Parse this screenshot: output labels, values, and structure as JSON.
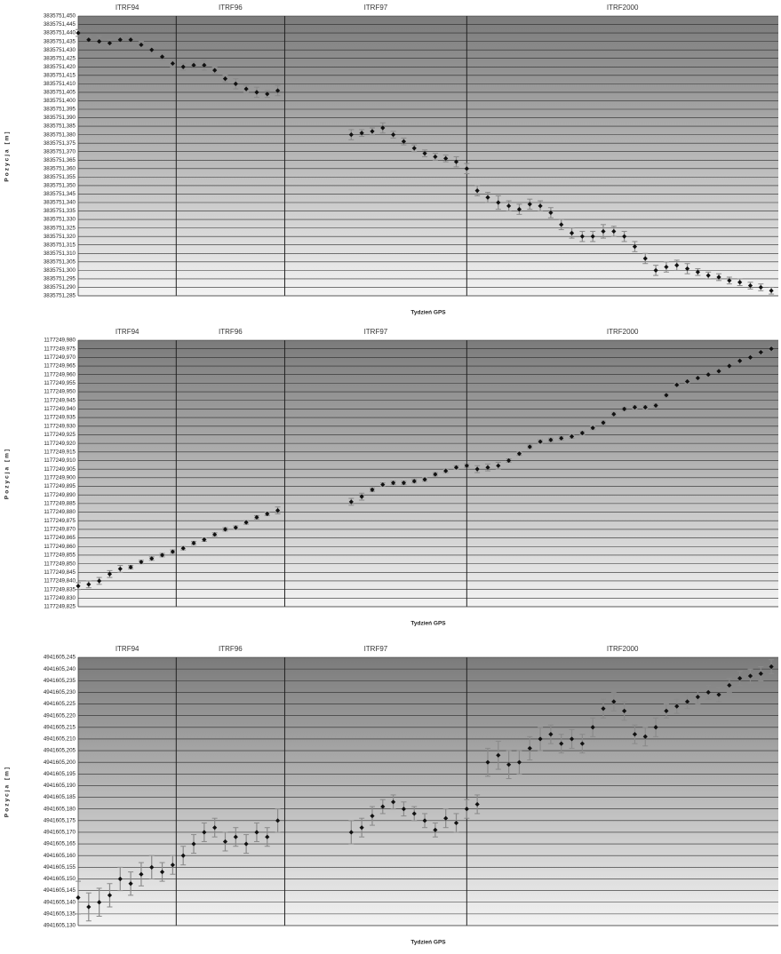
{
  "chart_data": [
    {
      "type": "scatter",
      "xlabel": "Tydzień GPS",
      "ylabel": "Pozycja [m]",
      "color": "#111111",
      "error_color": "#8a8a8a",
      "period_labels": [
        "ITRF94",
        "ITRF96",
        "ITRF97",
        "ITRF2000"
      ],
      "boundaries": [
        28,
        59,
        111
      ],
      "xlim": [
        0,
        200
      ],
      "ylim": [
        3835751.285,
        3835751.45
      ],
      "grid": true,
      "yticks": [
        {
          "value": 3835751.285,
          "label": "3835751,285"
        },
        {
          "value": 3835751.29,
          "label": "3835751,290"
        },
        {
          "value": 3835751.295,
          "label": "3835751,295"
        },
        {
          "value": 3835751.3,
          "label": "3835751,300"
        },
        {
          "value": 3835751.305,
          "label": "3835751,305"
        },
        {
          "value": 3835751.31,
          "label": "3835751,310"
        },
        {
          "value": 3835751.315,
          "label": "3835751,315"
        },
        {
          "value": 3835751.32,
          "label": "3835751,320"
        },
        {
          "value": 3835751.325,
          "label": "3835751,325"
        },
        {
          "value": 3835751.33,
          "label": "3835751,330"
        },
        {
          "value": 3835751.335,
          "label": "3835751,335"
        },
        {
          "value": 3835751.34,
          "label": "3835751,340"
        },
        {
          "value": 3835751.345,
          "label": "3835751,345"
        },
        {
          "value": 3835751.35,
          "label": "3835751,350"
        },
        {
          "value": 3835751.355,
          "label": "3835751,355"
        },
        {
          "value": 3835751.36,
          "label": "3835751,360"
        },
        {
          "value": 3835751.365,
          "label": "3835751,365"
        },
        {
          "value": 3835751.37,
          "label": "3835751,370"
        },
        {
          "value": 3835751.375,
          "label": "3835751,375"
        },
        {
          "value": 3835751.38,
          "label": "3835751,380"
        },
        {
          "value": 3835751.385,
          "label": "3835751,385"
        },
        {
          "value": 3835751.39,
          "label": "3835751,390"
        },
        {
          "value": 3835751.395,
          "label": "3835751,395"
        },
        {
          "value": 3835751.4,
          "label": "3835751,400"
        },
        {
          "value": 3835751.405,
          "label": "3835751,405"
        },
        {
          "value": 3835751.41,
          "label": "3835751,410"
        },
        {
          "value": 3835751.415,
          "label": "3835751,415"
        },
        {
          "value": 3835751.42,
          "label": "3835751,420"
        },
        {
          "value": 3835751.425,
          "label": "3835751,425"
        },
        {
          "value": 3835751.43,
          "label": "3835751,430"
        },
        {
          "value": 3835751.435,
          "label": "3835751,435"
        },
        {
          "value": 3835751.44,
          "label": "3835751,440"
        },
        {
          "value": 3835751.445,
          "label": "3835751,445"
        },
        {
          "value": 3835751.45,
          "label": "3835751,450"
        }
      ],
      "x": [
        0,
        3,
        6,
        9,
        12,
        15,
        18,
        21,
        24,
        27,
        30,
        33,
        36,
        39,
        42,
        45,
        48,
        51,
        54,
        57,
        78,
        81,
        84,
        87,
        90,
        93,
        96,
        99,
        102,
        105,
        108,
        111,
        114,
        117,
        120,
        123,
        126,
        129,
        132,
        135,
        138,
        141,
        144,
        147,
        150,
        153,
        156,
        159,
        162,
        165,
        168,
        171,
        174,
        177,
        180,
        183,
        186,
        189,
        192,
        195,
        198
      ],
      "values": [
        3835751.44,
        3835751.436,
        3835751.435,
        3835751.434,
        3835751.436,
        3835751.436,
        3835751.433,
        3835751.43,
        3835751.426,
        3835751.422,
        3835751.42,
        3835751.421,
        3835751.421,
        3835751.418,
        3835751.413,
        3835751.41,
        3835751.407,
        3835751.405,
        3835751.404,
        3835751.406,
        3835751.38,
        3835751.381,
        3835751.382,
        3835751.384,
        3835751.38,
        3835751.376,
        3835751.372,
        3835751.369,
        3835751.367,
        3835751.366,
        3835751.364,
        3835751.36,
        3835751.347,
        3835751.343,
        3835751.34,
        3835751.338,
        3835751.336,
        3835751.339,
        3835751.338,
        3835751.334,
        3835751.327,
        3835751.322,
        3835751.32,
        3835751.32,
        3835751.323,
        3835751.323,
        3835751.32,
        3835751.314,
        3835751.307,
        3835751.3,
        3835751.302,
        3835751.303,
        3835751.301,
        3835751.299,
        3835751.297,
        3835751.296,
        3835751.294,
        3835751.293,
        3835751.291,
        3835751.29,
        3835751.288
      ],
      "errors": [
        0.002,
        0.002,
        0.003,
        0.002,
        0.002,
        0.003,
        0.002,
        0.002,
        0.002,
        0.002,
        0.002,
        0.002,
        0.003,
        0.002,
        0.002,
        0.003,
        0.002,
        0.003,
        0.002,
        0.003,
        0.003,
        0.002,
        0.002,
        0.003,
        0.002,
        0.002,
        0.002,
        0.002,
        0.002,
        0.002,
        0.003,
        0.003,
        0.003,
        0.003,
        0.004,
        0.003,
        0.003,
        0.003,
        0.003,
        0.003,
        0.003,
        0.003,
        0.003,
        0.003,
        0.004,
        0.003,
        0.003,
        0.003,
        0.003,
        0.003,
        0.003,
        0.003,
        0.003,
        0.002,
        0.002,
        0.002,
        0.002,
        0.002,
        0.002,
        0.002,
        0.002
      ]
    },
    {
      "type": "scatter",
      "xlabel": "Tydzień GPS",
      "ylabel": "Pozycja [m]",
      "color": "#111111",
      "error_color": "#8a8a8a",
      "period_labels": [
        "ITRF94",
        "ITRF96",
        "ITRF97",
        "ITRF2000"
      ],
      "boundaries": [
        28,
        59,
        111
      ],
      "xlim": [
        0,
        200
      ],
      "ylim": [
        1177249.825,
        1177249.98
      ],
      "grid": true,
      "yticks": [
        {
          "value": 1177249.825,
          "label": "1177249,825"
        },
        {
          "value": 1177249.83,
          "label": "1177249,830"
        },
        {
          "value": 1177249.835,
          "label": "1177249,835"
        },
        {
          "value": 1177249.84,
          "label": "1177249,840"
        },
        {
          "value": 1177249.845,
          "label": "1177249,845"
        },
        {
          "value": 1177249.85,
          "label": "1177249,850"
        },
        {
          "value": 1177249.855,
          "label": "1177249,855"
        },
        {
          "value": 1177249.86,
          "label": "1177249,860"
        },
        {
          "value": 1177249.865,
          "label": "1177249,865"
        },
        {
          "value": 1177249.87,
          "label": "1177249,870"
        },
        {
          "value": 1177249.875,
          "label": "1177249,875"
        },
        {
          "value": 1177249.88,
          "label": "1177249,880"
        },
        {
          "value": 1177249.885,
          "label": "1177249,885"
        },
        {
          "value": 1177249.89,
          "label": "1177249,890"
        },
        {
          "value": 1177249.895,
          "label": "1177249,895"
        },
        {
          "value": 1177249.9,
          "label": "1177249,900"
        },
        {
          "value": 1177249.905,
          "label": "1177249,905"
        },
        {
          "value": 1177249.91,
          "label": "1177249,910"
        },
        {
          "value": 1177249.915,
          "label": "1177249,915"
        },
        {
          "value": 1177249.92,
          "label": "1177249,920"
        },
        {
          "value": 1177249.925,
          "label": "1177249,925"
        },
        {
          "value": 1177249.93,
          "label": "1177249,930"
        },
        {
          "value": 1177249.935,
          "label": "1177249,935"
        },
        {
          "value": 1177249.94,
          "label": "1177249,940"
        },
        {
          "value": 1177249.945,
          "label": "1177249,945"
        },
        {
          "value": 1177249.95,
          "label": "1177249,950"
        },
        {
          "value": 1177249.955,
          "label": "1177249,955"
        },
        {
          "value": 1177249.96,
          "label": "1177249,960"
        },
        {
          "value": 1177249.965,
          "label": "1177249,965"
        },
        {
          "value": 1177249.97,
          "label": "1177249,970"
        },
        {
          "value": 1177249.975,
          "label": "1177249,975"
        },
        {
          "value": 1177249.98,
          "label": "1177249,980"
        }
      ],
      "x": [
        0,
        3,
        6,
        9,
        12,
        15,
        18,
        21,
        24,
        27,
        30,
        33,
        36,
        39,
        42,
        45,
        48,
        51,
        54,
        57,
        78,
        81,
        84,
        87,
        90,
        93,
        96,
        99,
        102,
        105,
        108,
        111,
        114,
        117,
        120,
        123,
        126,
        129,
        132,
        135,
        138,
        141,
        144,
        147,
        150,
        153,
        156,
        159,
        162,
        165,
        168,
        171,
        174,
        177,
        180,
        183,
        186,
        189,
        192,
        195,
        198
      ],
      "values": [
        1177249.837,
        1177249.838,
        1177249.84,
        1177249.844,
        1177249.847,
        1177249.848,
        1177249.851,
        1177249.853,
        1177249.855,
        1177249.857,
        1177249.859,
        1177249.862,
        1177249.864,
        1177249.867,
        1177249.87,
        1177249.871,
        1177249.874,
        1177249.877,
        1177249.879,
        1177249.881,
        1177249.886,
        1177249.889,
        1177249.893,
        1177249.896,
        1177249.897,
        1177249.897,
        1177249.898,
        1177249.899,
        1177249.902,
        1177249.904,
        1177249.906,
        1177249.907,
        1177249.905,
        1177249.906,
        1177249.907,
        1177249.91,
        1177249.914,
        1177249.918,
        1177249.921,
        1177249.922,
        1177249.923,
        1177249.924,
        1177249.926,
        1177249.929,
        1177249.932,
        1177249.937,
        1177249.94,
        1177249.941,
        1177249.941,
        1177249.942,
        1177249.948,
        1177249.954,
        1177249.956,
        1177249.958,
        1177249.96,
        1177249.962,
        1177249.965,
        1177249.968,
        1177249.97,
        1177249.973,
        1177249.975
      ],
      "errors": [
        0.002,
        0.002,
        0.002,
        0.002,
        0.002,
        0.001,
        0.001,
        0.001,
        0.001,
        0.001,
        0.001,
        0.001,
        0.001,
        0.001,
        0.001,
        0.001,
        0.001,
        0.001,
        0.001,
        0.002,
        0.002,
        0.002,
        0.001,
        0.001,
        0.001,
        0.001,
        0.001,
        0.001,
        0.001,
        0.001,
        0.001,
        0.001,
        0.002,
        0.002,
        0.002,
        0.001,
        0.001,
        0.001,
        0.001,
        0.001,
        0.001,
        0.001,
        0.001,
        0.001,
        0.001,
        0.001,
        0.001,
        0.001,
        0.001,
        0.001,
        0.001,
        0.001,
        0.001,
        0.001,
        0.001,
        0.001,
        0.001,
        0.001,
        0.001,
        0.001,
        0.001
      ]
    },
    {
      "type": "scatter",
      "xlabel": "Tydzień GPS",
      "ylabel": "Pozycja [m]",
      "color": "#111111",
      "error_color": "#8a8a8a",
      "period_labels": [
        "ITRF94",
        "ITRF96",
        "ITRF97",
        "ITRF2000"
      ],
      "boundaries": [
        28,
        59,
        111
      ],
      "xlim": [
        0,
        200
      ],
      "ylim": [
        4941605.13,
        4941605.245
      ],
      "grid": true,
      "yticks": [
        {
          "value": 4941605.13,
          "label": "4941605,130"
        },
        {
          "value": 4941605.135,
          "label": "4941605,135"
        },
        {
          "value": 4941605.14,
          "label": "4941605,140"
        },
        {
          "value": 4941605.145,
          "label": "4941605,145"
        },
        {
          "value": 4941605.15,
          "label": "4941605,150"
        },
        {
          "value": 4941605.155,
          "label": "4941605,155"
        },
        {
          "value": 4941605.16,
          "label": "4941605,160"
        },
        {
          "value": 4941605.165,
          "label": "4941605,165"
        },
        {
          "value": 4941605.17,
          "label": "4941605,170"
        },
        {
          "value": 4941605.175,
          "label": "4941605,175"
        },
        {
          "value": 4941605.18,
          "label": "4941605,180"
        },
        {
          "value": 4941605.185,
          "label": "4941605,185"
        },
        {
          "value": 4941605.19,
          "label": "4941605,190"
        },
        {
          "value": 4941605.195,
          "label": "4941605,195"
        },
        {
          "value": 4941605.2,
          "label": "4941605,200"
        },
        {
          "value": 4941605.205,
          "label": "4941605,205"
        },
        {
          "value": 4941605.21,
          "label": "4941605,210"
        },
        {
          "value": 4941605.215,
          "label": "4941605,215"
        },
        {
          "value": 4941605.22,
          "label": "4941605,220"
        },
        {
          "value": 4941605.225,
          "label": "4941605,225"
        },
        {
          "value": 4941605.23,
          "label": "4941605,230"
        },
        {
          "value": 4941605.235,
          "label": "4941605,235"
        },
        {
          "value": 4941605.24,
          "label": "4941605,240"
        },
        {
          "value": 4941605.245,
          "label": "4941605,245"
        }
      ],
      "x": [
        0,
        3,
        6,
        9,
        12,
        15,
        18,
        21,
        24,
        27,
        30,
        33,
        36,
        39,
        42,
        45,
        48,
        51,
        54,
        57,
        78,
        81,
        84,
        87,
        90,
        93,
        96,
        99,
        102,
        105,
        108,
        111,
        114,
        117,
        120,
        123,
        126,
        129,
        132,
        135,
        138,
        141,
        144,
        147,
        150,
        153,
        156,
        159,
        162,
        165,
        168,
        171,
        174,
        177,
        180,
        183,
        186,
        189,
        192,
        195,
        198
      ],
      "values": [
        4941605.142,
        4941605.138,
        4941605.14,
        4941605.143,
        4941605.15,
        4941605.148,
        4941605.152,
        4941605.155,
        4941605.153,
        4941605.156,
        4941605.16,
        4941605.165,
        4941605.17,
        4941605.172,
        4941605.166,
        4941605.168,
        4941605.165,
        4941605.17,
        4941605.168,
        4941605.175,
        4941605.17,
        4941605.172,
        4941605.177,
        4941605.181,
        4941605.183,
        4941605.18,
        4941605.178,
        4941605.175,
        4941605.171,
        4941605.176,
        4941605.174,
        4941605.18,
        4941605.182,
        4941605.2,
        4941605.203,
        4941605.199,
        4941605.2,
        4941605.206,
        4941605.21,
        4941605.212,
        4941605.208,
        4941605.21,
        4941605.208,
        4941605.215,
        4941605.223,
        4941605.226,
        4941605.222,
        4941605.212,
        4941605.211,
        4941605.215,
        4941605.222,
        4941605.224,
        4941605.226,
        4941605.228,
        4941605.23,
        4941605.229,
        4941605.233,
        4941605.236,
        4941605.237,
        4941605.238,
        4941605.241
      ],
      "errors": [
        0.007,
        0.006,
        0.006,
        0.005,
        0.005,
        0.005,
        0.005,
        0.005,
        0.004,
        0.004,
        0.004,
        0.004,
        0.004,
        0.004,
        0.004,
        0.004,
        0.004,
        0.004,
        0.004,
        0.005,
        0.005,
        0.004,
        0.004,
        0.003,
        0.003,
        0.003,
        0.003,
        0.003,
        0.003,
        0.004,
        0.004,
        0.004,
        0.004,
        0.006,
        0.006,
        0.006,
        0.005,
        0.005,
        0.005,
        0.004,
        0.004,
        0.004,
        0.004,
        0.004,
        0.004,
        0.004,
        0.004,
        0.004,
        0.004,
        0.004,
        0.003,
        0.003,
        0.003,
        0.003,
        0.003,
        0.003,
        0.003,
        0.003,
        0.003,
        0.003,
        0.003
      ]
    }
  ]
}
